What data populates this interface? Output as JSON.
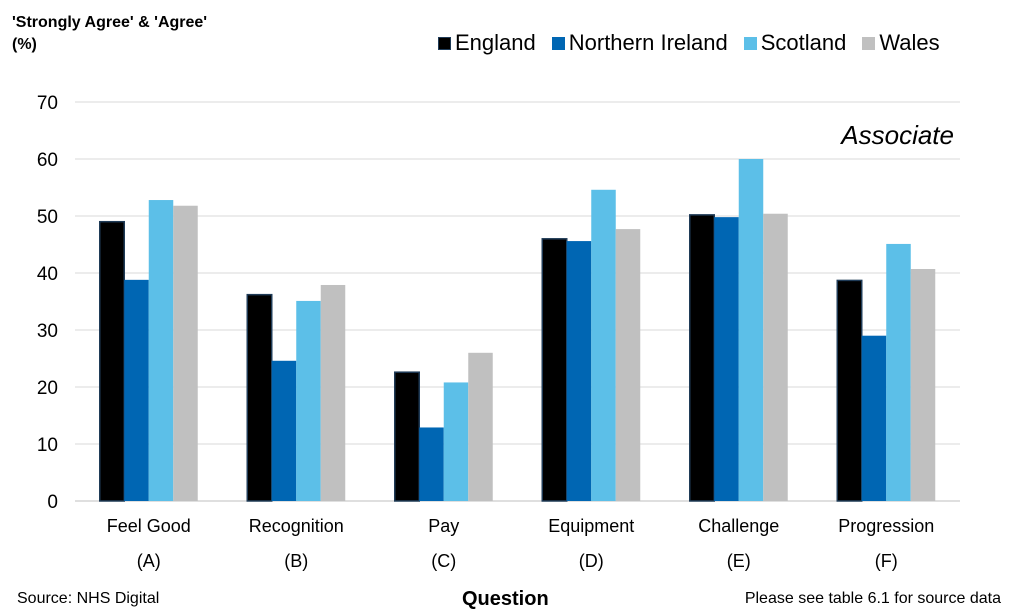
{
  "chart_data": {
    "type": "bar",
    "ylabel": "'Strongly Agree' & 'Agree' (%)",
    "xlabel": "Question",
    "annotation": "Associate",
    "categories": [
      "Feel Good",
      "Recognition",
      "Pay",
      "Equipment",
      "Challenge",
      "Progression"
    ],
    "category_codes": [
      "(A)",
      "(B)",
      "(C)",
      "(D)",
      "(E)",
      "(F)"
    ],
    "ylim": [
      0,
      70
    ],
    "yticks": [
      0,
      10,
      20,
      30,
      40,
      50,
      60,
      70
    ],
    "grid": true,
    "legend_position": "top-right",
    "series": [
      {
        "name": "England",
        "color": "#000000",
        "values": [
          49.0,
          36.2,
          22.6,
          46.0,
          50.2,
          38.7
        ]
      },
      {
        "name": "Northern Ireland",
        "color": "#0066b3",
        "values": [
          38.8,
          24.6,
          12.9,
          45.6,
          49.8,
          29.0
        ]
      },
      {
        "name": "Scotland",
        "color": "#5cbfe8",
        "values": [
          52.8,
          35.1,
          20.8,
          54.6,
          60.0,
          45.1
        ]
      },
      {
        "name": "Wales",
        "color": "#c0c0c0",
        "values": [
          51.8,
          37.9,
          26.0,
          47.7,
          50.4,
          40.7
        ]
      }
    ]
  },
  "source": "Source: NHS Digital",
  "footnote": "Please see table 6.1 for source data"
}
